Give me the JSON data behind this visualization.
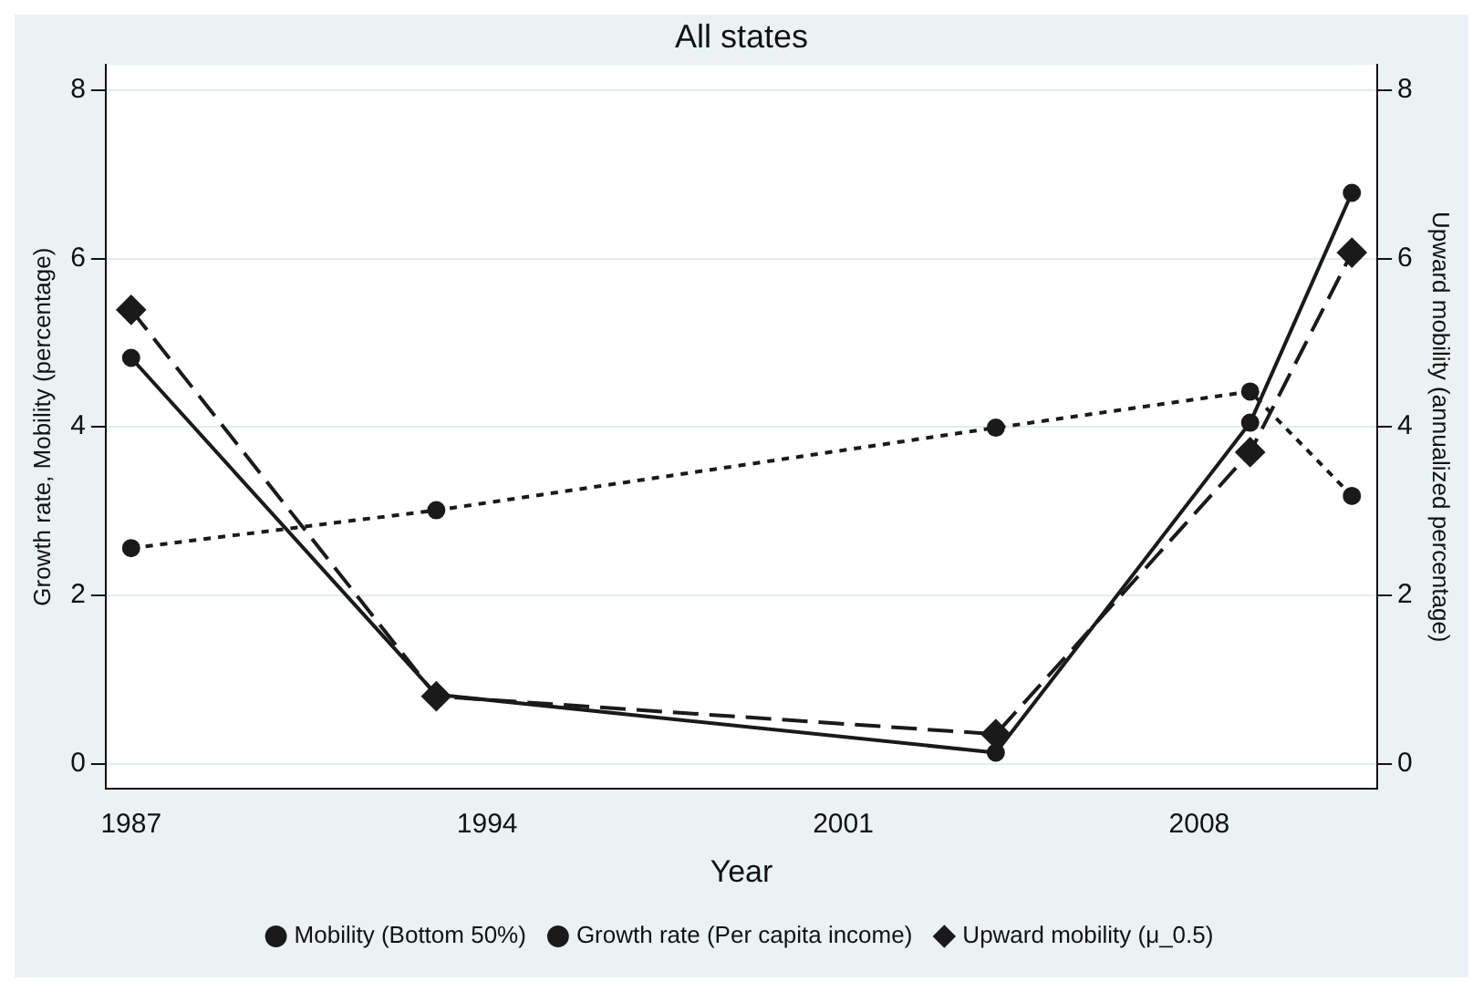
{
  "chart_data": {
    "type": "line",
    "title": "All states",
    "xlabel": "Year",
    "ylabel": "Growth rate, Mobility (percentage)",
    "y2label": "Upward mobility (annualized percentage)",
    "x": [
      1987,
      1993,
      2004,
      2009,
      2011
    ],
    "series": [
      {
        "name": "Mobility (Bottom 50%)",
        "color": "#1a1a1a",
        "values": [
          4.82,
          0.82,
          0.13,
          4.05,
          6.78
        ],
        "marker": "circle",
        "line_style": "solid"
      },
      {
        "name": "Growth rate (Per capita income)",
        "color": "#1a1a1a",
        "values": [
          2.56,
          3.01,
          3.99,
          4.42,
          3.18
        ],
        "marker": "circle",
        "line_style": "dotted"
      },
      {
        "name": "Upward mobility (μ_0.5)",
        "color": "#1a1a1a",
        "values": [
          5.39,
          0.8,
          0.35,
          3.7,
          6.07
        ],
        "marker": "diamond",
        "line_style": "dashed",
        "axis": "y2"
      }
    ],
    "xlim": [
      1986.5,
      2011.5
    ],
    "xticks": [
      1987,
      1994,
      2001,
      2008
    ],
    "ylim": [
      -0.3,
      8.3
    ],
    "yticks": [
      0,
      2,
      4,
      6,
      8
    ],
    "y2lim": [
      -0.3,
      8.3
    ],
    "y2ticks": [
      0,
      2,
      4,
      6,
      8
    ],
    "grid": "y",
    "legend": "bottom"
  }
}
